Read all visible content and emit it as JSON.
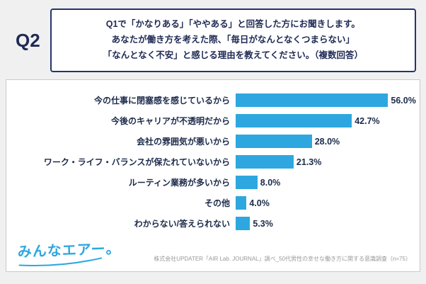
{
  "header": {
    "q_label": "Q2",
    "question_lines": [
      "Q1で「かなりある」「ややある」と回答した方にお聞きします。",
      "あなたが働き方を考えた際、「毎日がなんとなくつまらない」",
      "「なんとなく不安」と感じる理由を教えてください。（複数回答）"
    ]
  },
  "chart_data": {
    "type": "bar",
    "orientation": "horizontal",
    "title": "",
    "xlabel": "",
    "ylabel": "",
    "xlim": [
      0,
      65
    ],
    "grid": false,
    "legend": false,
    "bar_color": "#2EA7E0",
    "categories": [
      "今の仕事に閉塞感を感じているから",
      "今後のキャリアが不透明だから",
      "会社の雰囲気が悪いから",
      "ワーク・ライフ・バランスが保たれていないから",
      "ルーティン業務が多いから",
      "その他",
      "わからない/答えられない"
    ],
    "values": [
      56.0,
      42.7,
      28.0,
      21.3,
      8.0,
      4.0,
      5.3
    ],
    "value_labels": [
      "56.0%",
      "42.7%",
      "28.0%",
      "21.3%",
      "8.0%",
      "4.0%",
      "5.3%"
    ]
  },
  "footer": {
    "logo_text": "みんなエアー。",
    "source_note": "株式会社UPDATER「AIR Lab. JOURNAL」調べ_50代男性の幸せな働き方に関する意識調査（n=75）"
  },
  "colors": {
    "accent_blue": "#2EA7E0",
    "navy_text": "#1f2a54",
    "box_border": "#24356b",
    "note_gray": "#999999"
  }
}
